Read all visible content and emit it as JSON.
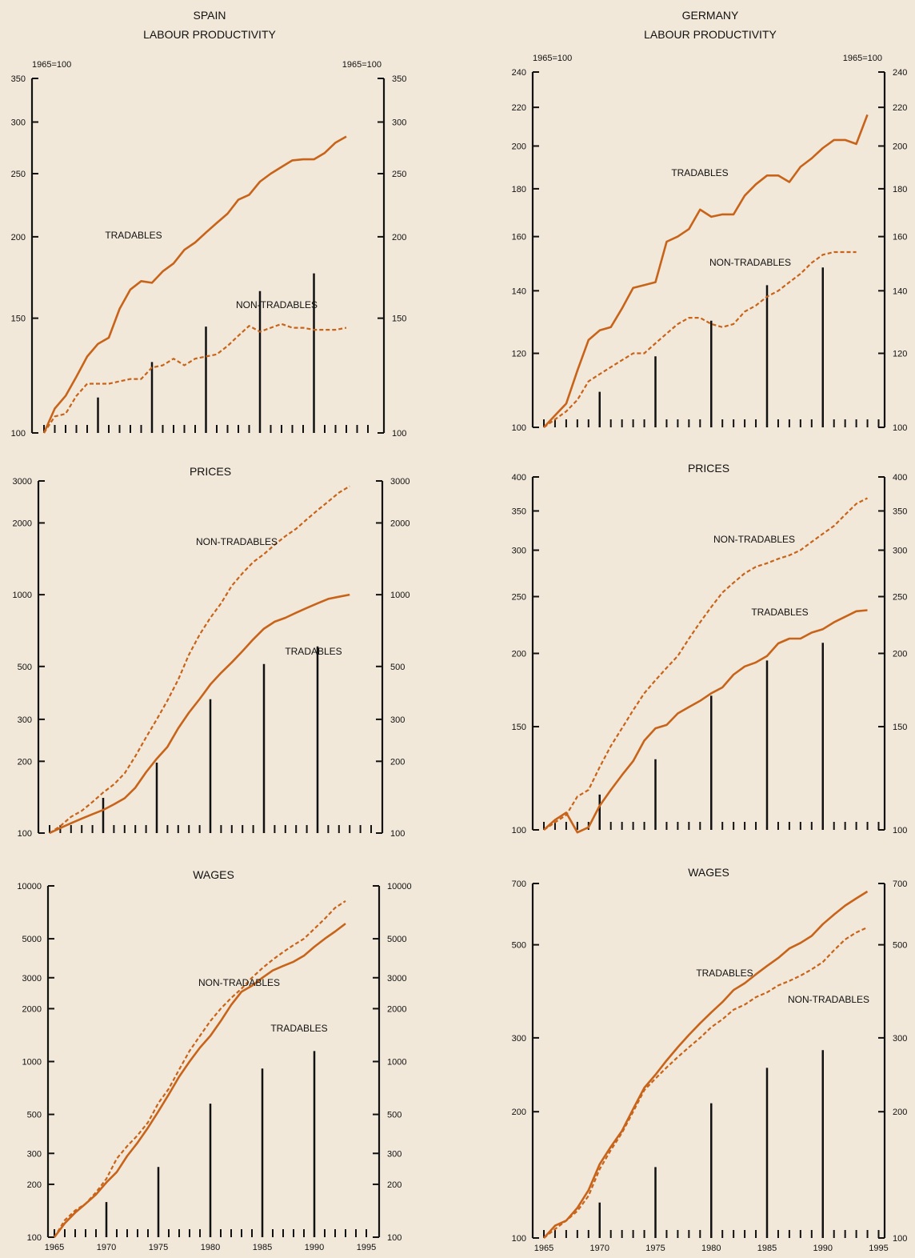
{
  "headers": [
    {
      "country": "SPAIN",
      "subtitle": "LABOUR PRODUCTIVITY"
    },
    {
      "country": "GERMANY",
      "subtitle": "LABOUR PRODUCTIVITY"
    }
  ],
  "colors": {
    "background": "#f1e8da",
    "series": "#c8641a",
    "axis": "#111111"
  },
  "chart_data": [
    {
      "type": "line",
      "country": "Spain",
      "title": "LABOUR PRODUCTIVITY",
      "scale": "log",
      "ylim": [
        100,
        350
      ],
      "yticks": [
        100,
        150,
        200,
        250,
        300,
        350
      ],
      "yunit_left": "1965=100",
      "yunit_right": "1965=100",
      "xlim": [
        1964,
        1996
      ],
      "series": [
        {
          "name": "TRADABLES",
          "style": "solid",
          "x": [
            1965,
            1966,
            1967,
            1968,
            1969,
            1970,
            1971,
            1972,
            1973,
            1974,
            1975,
            1976,
            1977,
            1978,
            1979,
            1980,
            1981,
            1982,
            1983,
            1984,
            1985,
            1986,
            1987,
            1988,
            1989,
            1990,
            1991,
            1992,
            1993
          ],
          "values": [
            100,
            109,
            114,
            122,
            131,
            137,
            140,
            155,
            166,
            171,
            170,
            177,
            182,
            191,
            196,
            203,
            210,
            217,
            228,
            232,
            243,
            250,
            256,
            262,
            263,
            263,
            269,
            279,
            285
          ]
        },
        {
          "name": "NON-TRADABLES",
          "style": "dashed",
          "x": [
            1965,
            1966,
            1967,
            1968,
            1969,
            1970,
            1971,
            1972,
            1973,
            1974,
            1975,
            1976,
            1977,
            1978,
            1979,
            1980,
            1981,
            1982,
            1983,
            1984,
            1985,
            1986,
            1987,
            1988,
            1989,
            1990,
            1991,
            1992,
            1993
          ],
          "values": [
            100,
            106,
            107,
            114,
            119,
            119,
            119,
            120,
            121,
            121,
            126,
            127,
            130,
            127,
            130,
            131,
            132,
            136,
            141,
            146,
            143,
            145,
            147,
            145,
            145,
            144,
            144,
            144,
            145
          ]
        }
      ]
    },
    {
      "type": "line",
      "country": "Germany",
      "title": "LABOUR PRODUCTIVITY",
      "scale": "log",
      "ylim": [
        100,
        240
      ],
      "yticks": [
        100,
        120,
        140,
        160,
        180,
        200,
        220,
        240
      ],
      "yunit_left": "1965=100",
      "yunit_right": "1965=100",
      "xlim": [
        1964,
        1996
      ],
      "series": [
        {
          "name": "TRADABLES",
          "style": "solid",
          "x": [
            1965,
            1966,
            1967,
            1968,
            1969,
            1970,
            1971,
            1972,
            1973,
            1974,
            1975,
            1976,
            1977,
            1978,
            1979,
            1980,
            1981,
            1982,
            1983,
            1984,
            1985,
            1986,
            1987,
            1988,
            1989,
            1990,
            1991,
            1992,
            1993,
            1994
          ],
          "values": [
            100,
            103,
            106,
            115,
            124,
            127,
            128,
            134,
            141,
            142,
            143,
            158,
            160,
            163,
            171,
            168,
            169,
            169,
            177,
            182,
            186,
            186,
            183,
            190,
            194,
            199,
            203,
            203,
            201,
            216
          ]
        },
        {
          "name": "NON-TRADABLES",
          "style": "dashed",
          "x": [
            1965,
            1966,
            1967,
            1968,
            1969,
            1970,
            1971,
            1972,
            1973,
            1974,
            1975,
            1976,
            1977,
            1978,
            1979,
            1980,
            1981,
            1982,
            1983,
            1984,
            1985,
            1986,
            1987,
            1988,
            1989,
            1990,
            1991,
            1992,
            1993
          ],
          "values": [
            100,
            102,
            104,
            107,
            112,
            114,
            116,
            118,
            120,
            120,
            123,
            126,
            129,
            131,
            131,
            129,
            128,
            129,
            133,
            135,
            138,
            140,
            143,
            146,
            150,
            153,
            154,
            154,
            154
          ]
        }
      ]
    },
    {
      "type": "line",
      "country": "Spain",
      "title": "PRICES",
      "scale": "log",
      "ylim": [
        100,
        3000
      ],
      "yticks": [
        100,
        200,
        300,
        500,
        1000,
        2000,
        3000
      ],
      "xlim": [
        1964,
        1996
      ],
      "series": [
        {
          "name": "NON-TRADABLES",
          "style": "dashed",
          "x": [
            1965,
            1966,
            1967,
            1968,
            1969,
            1970,
            1971,
            1972,
            1973,
            1974,
            1975,
            1976,
            1977,
            1978,
            1979,
            1980,
            1981,
            1982,
            1983,
            1984,
            1985,
            1986,
            1987,
            1988,
            1989,
            1990,
            1991,
            1992,
            1993
          ],
          "values": [
            100,
            107,
            117,
            124,
            135,
            148,
            160,
            178,
            210,
            252,
            300,
            360,
            440,
            560,
            680,
            800,
            920,
            1090,
            1230,
            1370,
            1480,
            1620,
            1760,
            1890,
            2070,
            2260,
            2460,
            2680,
            2850
          ]
        },
        {
          "name": "TRADABLES",
          "style": "solid",
          "x": [
            1965,
            1966,
            1967,
            1968,
            1969,
            1970,
            1971,
            1972,
            1973,
            1974,
            1975,
            1976,
            1977,
            1978,
            1979,
            1980,
            1981,
            1982,
            1983,
            1984,
            1985,
            1986,
            1987,
            1988,
            1989,
            1990,
            1991,
            1992,
            1993
          ],
          "values": [
            100,
            105,
            110,
            115,
            120,
            125,
            132,
            140,
            155,
            180,
            205,
            230,
            275,
            320,
            365,
            420,
            470,
            520,
            580,
            650,
            720,
            770,
            800,
            840,
            880,
            920,
            960,
            980,
            1000
          ]
        }
      ]
    },
    {
      "type": "line",
      "country": "Germany",
      "title": "PRICES",
      "scale": "log",
      "ylim": [
        100,
        400
      ],
      "yticks": [
        100,
        150,
        200,
        250,
        300,
        350,
        400
      ],
      "xlim": [
        1964,
        1996
      ],
      "series": [
        {
          "name": "NON-TRADABLES",
          "style": "dashed",
          "x": [
            1965,
            1966,
            1967,
            1968,
            1969,
            1970,
            1971,
            1972,
            1973,
            1974,
            1975,
            1976,
            1977,
            1978,
            1979,
            1980,
            1981,
            1982,
            1983,
            1984,
            1985,
            1986,
            1987,
            1988,
            1989,
            1990,
            1991,
            1992,
            1993,
            1994
          ],
          "values": [
            100,
            103,
            106,
            114,
            117,
            128,
            139,
            149,
            160,
            171,
            180,
            189,
            198,
            212,
            226,
            240,
            254,
            264,
            274,
            281,
            285,
            290,
            294,
            300,
            310,
            320,
            330,
            345,
            360,
            368
          ]
        },
        {
          "name": "TRADABLES",
          "style": "solid",
          "x": [
            1965,
            1966,
            1967,
            1968,
            1969,
            1970,
            1971,
            1972,
            1973,
            1974,
            1975,
            1976,
            1977,
            1978,
            1979,
            1980,
            1981,
            1982,
            1983,
            1984,
            1985,
            1986,
            1987,
            1988,
            1989,
            1990,
            1991,
            1992,
            1993,
            1994
          ],
          "values": [
            100,
            104,
            107,
            99,
            101,
            110,
            117,
            124,
            131,
            142,
            149,
            151,
            158,
            162,
            166,
            171,
            175,
            184,
            190,
            193,
            198,
            208,
            212,
            212,
            217,
            220,
            226,
            231,
            236,
            237
          ]
        }
      ]
    },
    {
      "type": "line",
      "country": "Spain",
      "title": "WAGES",
      "scale": "log",
      "ylim": [
        100,
        10000
      ],
      "yticks": [
        100,
        200,
        300,
        500,
        1000,
        2000,
        3000,
        5000,
        10000
      ],
      "xlim": [
        1964,
        1996
      ],
      "xticks": [
        1965,
        1970,
        1975,
        1980,
        1985,
        1990,
        1995
      ],
      "series": [
        {
          "name": "NON-TRADABLES",
          "style": "dashed",
          "x": [
            1965,
            1966,
            1967,
            1968,
            1969,
            1970,
            1971,
            1972,
            1973,
            1974,
            1975,
            1976,
            1977,
            1978,
            1979,
            1980,
            1981,
            1982,
            1983,
            1984,
            1985,
            1986,
            1987,
            1988,
            1989,
            1990,
            1991,
            1992,
            1993
          ],
          "values": [
            100,
            125,
            142,
            155,
            180,
            215,
            280,
            330,
            380,
            450,
            580,
            700,
            900,
            1150,
            1400,
            1700,
            2000,
            2300,
            2600,
            3000,
            3400,
            3800,
            4200,
            4600,
            5000,
            5700,
            6500,
            7500,
            8200
          ]
        },
        {
          "name": "TRADABLES",
          "style": "solid",
          "x": [
            1965,
            1966,
            1967,
            1968,
            1969,
            1970,
            1971,
            1972,
            1973,
            1974,
            1975,
            1976,
            1977,
            1978,
            1979,
            1980,
            1981,
            1982,
            1983,
            1984,
            1985,
            1986,
            1987,
            1988,
            1989,
            1990,
            1991,
            1992,
            1993
          ],
          "values": [
            100,
            120,
            138,
            155,
            175,
            205,
            235,
            290,
            345,
            420,
            520,
            650,
            820,
            1000,
            1200,
            1400,
            1700,
            2100,
            2500,
            2700,
            3000,
            3300,
            3500,
            3700,
            4000,
            4500,
            5000,
            5500,
            6100
          ]
        }
      ]
    },
    {
      "type": "line",
      "country": "Germany",
      "title": "WAGES",
      "scale": "log",
      "ylim": [
        100,
        700
      ],
      "yticks": [
        100,
        200,
        300,
        500,
        700
      ],
      "xlim": [
        1964,
        1996
      ],
      "xticks": [
        1965,
        1970,
        1975,
        1980,
        1985,
        1990,
        1995
      ],
      "series": [
        {
          "name": "TRADABLES",
          "style": "solid",
          "x": [
            1965,
            1966,
            1967,
            1968,
            1969,
            1970,
            1971,
            1972,
            1973,
            1974,
            1975,
            1976,
            1977,
            1978,
            1979,
            1980,
            1981,
            1982,
            1983,
            1984,
            1985,
            1986,
            1987,
            1988,
            1989,
            1990,
            1991,
            1992,
            1993,
            1994
          ],
          "values": [
            100,
            107,
            110,
            118,
            130,
            150,
            165,
            180,
            203,
            228,
            245,
            265,
            285,
            305,
            325,
            345,
            365,
            390,
            405,
            425,
            445,
            465,
            490,
            505,
            525,
            560,
            590,
            620,
            645,
            670
          ]
        },
        {
          "name": "NON-TRADABLES",
          "style": "dashed",
          "x": [
            1965,
            1966,
            1967,
            1968,
            1969,
            1970,
            1971,
            1972,
            1973,
            1974,
            1975,
            1976,
            1977,
            1978,
            1979,
            1980,
            1981,
            1982,
            1983,
            1984,
            1985,
            1986,
            1987,
            1988,
            1989,
            1990,
            1991,
            1992,
            1993,
            1994
          ],
          "values": [
            100,
            105,
            110,
            116,
            126,
            146,
            162,
            178,
            200,
            225,
            240,
            255,
            270,
            285,
            300,
            318,
            332,
            350,
            360,
            375,
            385,
            400,
            410,
            422,
            437,
            455,
            485,
            515,
            535,
            550
          ]
        }
      ]
    }
  ]
}
